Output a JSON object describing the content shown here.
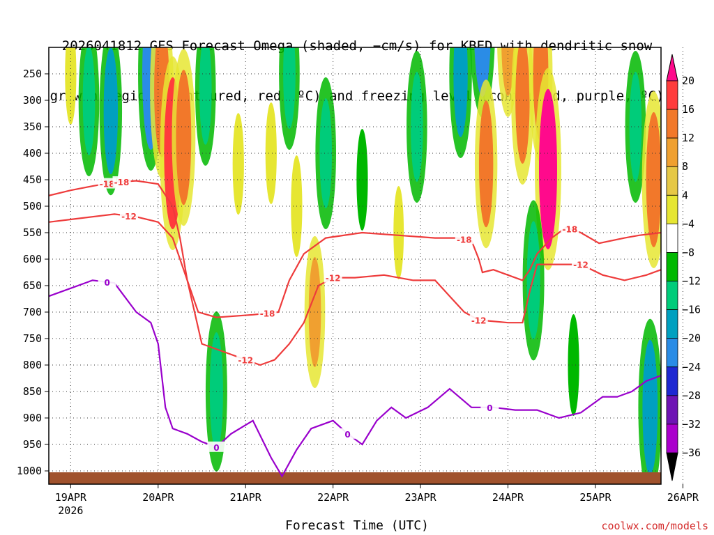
{
  "chart_data": {
    "type": "heatmap",
    "title": [
      "2026041812 GFS Forecast Omega (shaded, −cm/s) for KBED with dendritic snow",
      "growth region (contoured, red, ºC) and freezing level (contoured, purple, ºC)"
    ],
    "xlabel": "Forecast Time (UTC)",
    "ylabel": "",
    "credit": "coolwx.com/models",
    "x_ticks": [
      "19APR",
      "20APR",
      "21APR",
      "22APR",
      "23APR",
      "24APR",
      "25APR",
      "26APR"
    ],
    "x_year_label": "2026",
    "x_range_hours": [
      -6,
      162
    ],
    "y_ticks": [
      250,
      300,
      350,
      400,
      450,
      500,
      550,
      600,
      650,
      700,
      750,
      800,
      850,
      900,
      950,
      1000
    ],
    "y_tick_labels": [
      "250",
      "300",
      "350",
      "400",
      "450",
      "500",
      "550",
      "600",
      "650",
      "700",
      "750",
      "800",
      "850",
      "900",
      "950",
      "1000"
    ],
    "y_range_hpa": [
      200,
      1025
    ],
    "colorbar": {
      "labels": [
        "20",
        "16",
        "12",
        "8",
        "4",
        "−4",
        "−8",
        "−12",
        "−16",
        "−20",
        "−24",
        "−28",
        "−32",
        "−36"
      ],
      "colors": [
        "#ff0a8c",
        "#ff3c3c",
        "#f2782a",
        "#f0a030",
        "#e6c846",
        "#e6e632",
        "#ffffff",
        "#00b800",
        "#00cc7a",
        "#00a0c0",
        "#2a8ce6",
        "#1e28d2",
        "#6e14b4",
        "#aa00cc",
        "#a0a0a0"
      ],
      "top_arrow": "#ff0a8c",
      "bottom_arrow": "#000000"
    },
    "ground_color": "#a0522d",
    "omega_features": [
      {
        "hour": 0,
        "p": 250,
        "value": 6
      },
      {
        "hour": 5,
        "p": 300,
        "value": -8
      },
      {
        "hour": 11,
        "p": 320,
        "value": -12
      },
      {
        "hour": 22,
        "p": 250,
        "value": -18
      },
      {
        "hour": 25,
        "p": 280,
        "value": 14
      },
      {
        "hour": 28,
        "p": 400,
        "value": 18
      },
      {
        "hour": 31,
        "p": 370,
        "value": 14
      },
      {
        "hour": 37,
        "p": 280,
        "value": -8
      },
      {
        "hour": 40,
        "p": 850,
        "value": -10
      },
      {
        "hour": 46,
        "p": 420,
        "value": 6
      },
      {
        "hour": 55,
        "p": 400,
        "value": 6
      },
      {
        "hour": 60,
        "p": 250,
        "value": -8
      },
      {
        "hour": 62,
        "p": 500,
        "value": 6
      },
      {
        "hour": 67,
        "p": 700,
        "value": 8
      },
      {
        "hour": 70,
        "p": 400,
        "value": -8
      },
      {
        "hour": 80,
        "p": 450,
        "value": -6
      },
      {
        "hour": 90,
        "p": 550,
        "value": 4
      },
      {
        "hour": 95,
        "p": 350,
        "value": -8
      },
      {
        "hour": 107,
        "p": 250,
        "value": -12
      },
      {
        "hour": 113,
        "p": 150,
        "value": -18
      },
      {
        "hour": 114,
        "p": 420,
        "value": 12
      },
      {
        "hour": 120,
        "p": 180,
        "value": 10
      },
      {
        "hour": 124,
        "p": 300,
        "value": 12
      },
      {
        "hour": 129,
        "p": 250,
        "value": 14
      },
      {
        "hour": 131,
        "p": 430,
        "value": 20
      },
      {
        "hour": 127,
        "p": 640,
        "value": -10
      },
      {
        "hour": 138,
        "p": 800,
        "value": -6
      },
      {
        "hour": 155,
        "p": 350,
        "value": -8
      },
      {
        "hour": 160,
        "p": 450,
        "value": 14
      },
      {
        "hour": 159,
        "p": 880,
        "value": -14
      }
    ],
    "contours": [
      {
        "name": "-18 C (dendritic top)",
        "color": "#ee3b3b",
        "label": "-18",
        "label_hours": [
          10,
          54,
          108,
          137,
          14
        ],
        "points": [
          [
            -6,
            480
          ],
          [
            0,
            470
          ],
          [
            6,
            462
          ],
          [
            12,
            455
          ],
          [
            18,
            452
          ],
          [
            24,
            458
          ],
          [
            28,
            500
          ],
          [
            30,
            560
          ],
          [
            32,
            640
          ],
          [
            35,
            700
          ],
          [
            40,
            710
          ],
          [
            50,
            705
          ],
          [
            57,
            700
          ],
          [
            60,
            640
          ],
          [
            64,
            590
          ],
          [
            70,
            560
          ],
          [
            80,
            550
          ],
          [
            90,
            555
          ],
          [
            100,
            560
          ],
          [
            106,
            560
          ],
          [
            110,
            565
          ],
          [
            112,
            600
          ],
          [
            113,
            625
          ],
          [
            116,
            620
          ],
          [
            120,
            630
          ],
          [
            124,
            640
          ],
          [
            126,
            620
          ],
          [
            128,
            590
          ],
          [
            132,
            560
          ],
          [
            136,
            540
          ],
          [
            140,
            550
          ],
          [
            145,
            570
          ],
          [
            152,
            560
          ],
          [
            156,
            555
          ],
          [
            162,
            550
          ]
        ]
      },
      {
        "name": "-12 C (dendritic bottom)",
        "color": "#ee3b3b",
        "label": "-12",
        "label_hours": [
          16,
          48,
          72,
          112,
          140
        ],
        "points": [
          [
            -6,
            530
          ],
          [
            0,
            525
          ],
          [
            6,
            520
          ],
          [
            12,
            515
          ],
          [
            18,
            520
          ],
          [
            24,
            530
          ],
          [
            28,
            560
          ],
          [
            32,
            640
          ],
          [
            36,
            760
          ],
          [
            42,
            775
          ],
          [
            48,
            790
          ],
          [
            52,
            800
          ],
          [
            56,
            790
          ],
          [
            60,
            760
          ],
          [
            64,
            720
          ],
          [
            68,
            650
          ],
          [
            72,
            635
          ],
          [
            78,
            635
          ],
          [
            86,
            630
          ],
          [
            94,
            640
          ],
          [
            100,
            640
          ],
          [
            104,
            670
          ],
          [
            108,
            700
          ],
          [
            112,
            715
          ],
          [
            120,
            720
          ],
          [
            124,
            720
          ],
          [
            126,
            660
          ],
          [
            128,
            610
          ],
          [
            132,
            610
          ],
          [
            140,
            610
          ],
          [
            146,
            630
          ],
          [
            152,
            640
          ],
          [
            158,
            630
          ],
          [
            162,
            620
          ]
        ]
      },
      {
        "name": "0 C (freezing level)",
        "color": "#9900cc",
        "label": "0",
        "label_hours": [
          10,
          40,
          76,
          115
        ],
        "points": [
          [
            -6,
            670
          ],
          [
            0,
            655
          ],
          [
            6,
            640
          ],
          [
            12,
            645
          ],
          [
            18,
            700
          ],
          [
            22,
            720
          ],
          [
            24,
            760
          ],
          [
            26,
            880
          ],
          [
            28,
            920
          ],
          [
            32,
            930
          ],
          [
            36,
            945
          ],
          [
            40,
            955
          ],
          [
            44,
            930
          ],
          [
            50,
            905
          ],
          [
            55,
            975
          ],
          [
            58,
            1010
          ],
          [
            62,
            960
          ],
          [
            66,
            920
          ],
          [
            72,
            905
          ],
          [
            76,
            930
          ],
          [
            80,
            950
          ],
          [
            84,
            905
          ],
          [
            88,
            880
          ],
          [
            92,
            900
          ],
          [
            98,
            880
          ],
          [
            104,
            845
          ],
          [
            110,
            880
          ],
          [
            116,
            880
          ],
          [
            122,
            885
          ],
          [
            128,
            885
          ],
          [
            134,
            900
          ],
          [
            140,
            890
          ],
          [
            146,
            860
          ],
          [
            150,
            860
          ],
          [
            154,
            850
          ],
          [
            158,
            830
          ],
          [
            162,
            820
          ]
        ]
      }
    ]
  }
}
